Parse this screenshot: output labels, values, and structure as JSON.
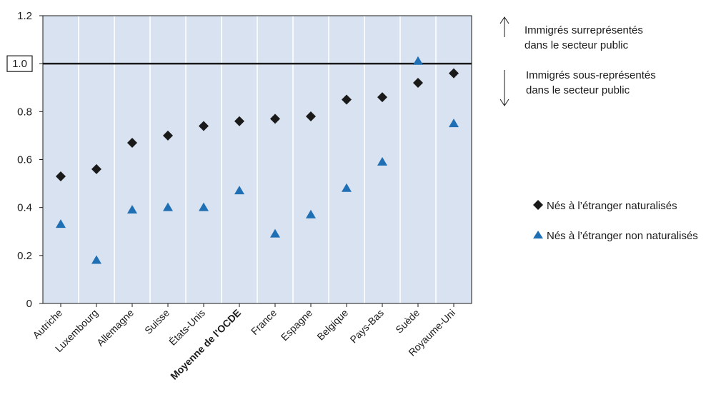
{
  "chart_data": {
    "type": "scatter",
    "categories": [
      "Autriche",
      "Luxembourg",
      "Allemagne",
      "Suisse",
      "États-Unis",
      "Moyenne de l'OCDE",
      "France",
      "Espagne",
      "Belgique",
      "Pays-Bas",
      "Suède",
      "Royaume-Uni"
    ],
    "highlight_category": "Moyenne de l'OCDE",
    "series": [
      {
        "name": "Nés à l’étranger naturalisés",
        "marker": "diamond",
        "color": "#1a1a1a",
        "values": [
          0.53,
          0.56,
          0.67,
          0.7,
          0.74,
          0.76,
          0.77,
          0.78,
          0.85,
          0.86,
          0.92,
          0.96
        ]
      },
      {
        "name": "Nés à l’étranger non naturalisés",
        "marker": "triangle",
        "color": "#1f6fb5",
        "values": [
          0.33,
          0.18,
          0.39,
          0.4,
          0.4,
          0.47,
          0.29,
          0.37,
          0.48,
          0.59,
          1.01,
          0.75
        ]
      }
    ],
    "ylim": [
      0,
      1.2
    ],
    "yticks": [
      "0",
      "0.2",
      "0.4",
      "0.6",
      "0.8",
      "1.0",
      "1.2"
    ],
    "reference_line": 1.0,
    "reference_label": "1.0",
    "grid": "vertical-bands",
    "plot_background": "#d9e2f0",
    "annotations": {
      "above": [
        "Immigrés surreprésentés",
        "dans le secteur public"
      ],
      "below": [
        "Immigrés sous-représentés",
        "dans le secteur public"
      ]
    },
    "legend_position": "right"
  }
}
